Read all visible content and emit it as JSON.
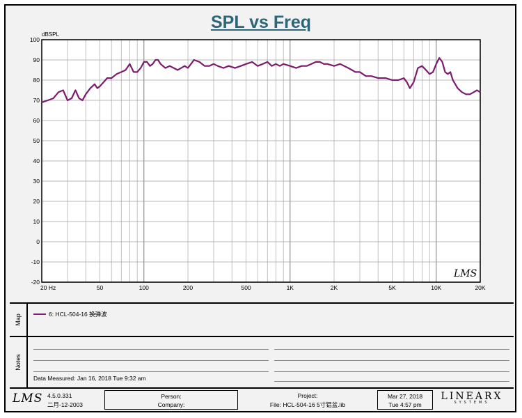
{
  "title": "SPL vs Freq",
  "chart_data": {
    "type": "line",
    "title": "SPL vs Freq",
    "xscale": "log",
    "xlim": [
      20,
      20000
    ],
    "ylim": [
      -20,
      100
    ],
    "ylabel": "dBSPL",
    "grid": true,
    "y_ticks": [
      "100",
      "90",
      "80",
      "70",
      "60",
      "50",
      "40",
      "30",
      "20",
      "10",
      "0",
      "-10",
      "-20"
    ],
    "x_ticks": [
      {
        "v": 20,
        "label": "20  Hz"
      },
      {
        "v": 50,
        "label": "50"
      },
      {
        "v": 100,
        "label": "100"
      },
      {
        "v": 200,
        "label": "200"
      },
      {
        "v": 500,
        "label": "500"
      },
      {
        "v": 1000,
        "label": "1K"
      },
      {
        "v": 2000,
        "label": "2K"
      },
      {
        "v": 5000,
        "label": "5K"
      },
      {
        "v": 10000,
        "label": "10K"
      },
      {
        "v": 20000,
        "label": "20K"
      }
    ],
    "series": [
      {
        "name": "6: HCL-504-16 换弹波",
        "color": "#7b1c6e",
        "x": [
          20,
          22,
          24,
          26,
          28,
          30,
          32,
          34,
          36,
          38,
          40,
          43,
          46,
          48,
          50,
          53,
          56,
          60,
          65,
          70,
          75,
          80,
          85,
          90,
          95,
          100,
          105,
          110,
          115,
          120,
          125,
          130,
          140,
          150,
          160,
          170,
          180,
          190,
          200,
          210,
          220,
          240,
          260,
          280,
          300,
          320,
          350,
          380,
          420,
          460,
          500,
          550,
          600,
          650,
          700,
          750,
          800,
          850,
          900,
          1000,
          1100,
          1200,
          1300,
          1400,
          1500,
          1600,
          1700,
          1800,
          2000,
          2200,
          2500,
          2800,
          3000,
          3300,
          3600,
          4000,
          4500,
          5000,
          5500,
          6000,
          6300,
          6600,
          7000,
          7500,
          8000,
          8500,
          9000,
          9500,
          10000,
          10500,
          11000,
          11500,
          12000,
          12500,
          13000,
          14000,
          15000,
          16000,
          17000,
          18000,
          19000,
          20000
        ],
        "y": [
          69,
          70,
          71,
          74,
          75,
          70,
          71,
          75,
          71,
          70,
          73,
          76,
          78,
          76,
          77,
          79,
          81,
          81,
          83,
          84,
          85,
          88,
          84,
          84,
          86,
          89,
          89,
          87,
          88,
          90,
          90,
          88,
          86,
          87,
          86,
          85,
          86,
          87,
          86,
          88,
          90,
          89,
          87,
          87,
          88,
          87,
          86,
          87,
          86,
          87,
          88,
          89,
          87,
          88,
          89,
          87,
          88,
          87,
          88,
          87,
          86,
          87,
          87,
          88,
          89,
          89,
          88,
          88,
          87,
          88,
          86,
          84,
          84,
          82,
          82,
          81,
          81,
          80,
          80,
          81,
          79,
          76,
          79,
          86,
          87,
          85,
          83,
          84,
          88,
          91,
          89,
          84,
          83,
          84,
          80,
          76,
          74,
          73,
          73,
          74,
          75,
          74
        ]
      }
    ]
  },
  "watermark": "LMS",
  "map": {
    "side_label": "Map",
    "legend_label": "6: HCL-504-16 换弹波"
  },
  "notes": {
    "side_label": "Notes",
    "date_measured": "Data Measured: Jan 16, 2018  Tue  9:32 am"
  },
  "footer": {
    "logo": "LMS",
    "version": "4.5.0.331",
    "version_date": "二月-12-2003",
    "person_label": "Person:",
    "company_label": "Company:",
    "project_label": "Project:",
    "file_label": "File: HCL-504-16  5寸铝盆.lib",
    "date": "Mar 27, 2018",
    "time": "Tue  4:57 pm",
    "brand_main": "LINEARX",
    "brand_sub": "SYSTEMS"
  }
}
